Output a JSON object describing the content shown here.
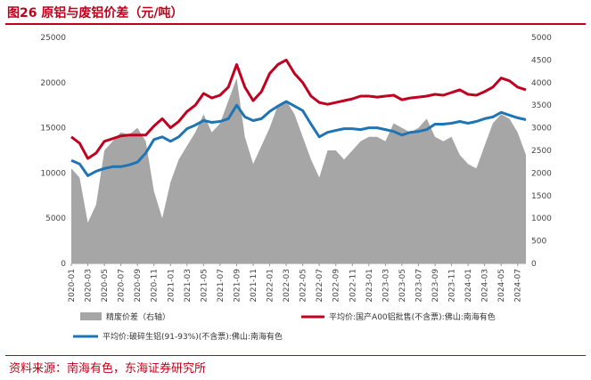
{
  "title": "图26  原铝与废铝价差（元/吨）",
  "source": "资料来源：南海有色，东海证券研究所",
  "chart_data": {
    "type": "line+area",
    "ylim_left": [
      0,
      25000
    ],
    "ylim_right": [
      0,
      5000
    ],
    "yticks_left": [
      "0",
      "5000",
      "10000",
      "15000",
      "20000",
      "25000"
    ],
    "yticks_right": [
      "0",
      "500",
      "1000",
      "1500",
      "2000",
      "2500",
      "3000",
      "3500",
      "4000",
      "4500",
      "5000"
    ],
    "xticks": [
      "2020-01",
      "2020-03",
      "2020-05",
      "2020-07",
      "2020-09",
      "2020-11",
      "2021-01",
      "2021-03",
      "2021-05",
      "2021-07",
      "2021-09",
      "2021-11",
      "2022-01",
      "2022-03",
      "2022-05",
      "2022-07",
      "2022-09",
      "2022-11",
      "2023-01",
      "2023-03",
      "2023-05",
      "2023-07",
      "2023-09",
      "2023-11",
      "2024-01",
      "2024-03",
      "2024-05",
      "2024-07"
    ],
    "months": [
      "2020-01",
      "2020-02",
      "2020-03",
      "2020-04",
      "2020-05",
      "2020-06",
      "2020-07",
      "2020-08",
      "2020-09",
      "2020-10",
      "2020-11",
      "2020-12",
      "2021-01",
      "2021-02",
      "2021-03",
      "2021-04",
      "2021-05",
      "2021-06",
      "2021-07",
      "2021-08",
      "2021-09",
      "2021-10",
      "2021-11",
      "2021-12",
      "2022-01",
      "2022-02",
      "2022-03",
      "2022-04",
      "2022-05",
      "2022-06",
      "2022-07",
      "2022-08",
      "2022-09",
      "2022-10",
      "2022-11",
      "2022-12",
      "2023-01",
      "2023-02",
      "2023-03",
      "2023-04",
      "2023-05",
      "2023-06",
      "2023-07",
      "2023-08",
      "2023-09",
      "2023-10",
      "2023-11",
      "2023-12",
      "2024-01",
      "2024-02",
      "2024-03",
      "2024-04",
      "2024-05",
      "2024-06",
      "2024-07",
      "2024-08"
    ],
    "series": [
      {
        "name": "精废价差（右轴）",
        "axis": "right",
        "style": "area",
        "color": "#a6a6a6",
        "values": [
          2100,
          1900,
          900,
          1300,
          2500,
          2700,
          2900,
          2850,
          3000,
          2700,
          1600,
          1000,
          1800,
          2300,
          2600,
          2900,
          3300,
          2900,
          3100,
          3600,
          4100,
          2800,
          2200,
          2600,
          3000,
          3500,
          3600,
          3300,
          2800,
          2300,
          1900,
          2500,
          2500,
          2300,
          2500,
          2700,
          2800,
          2800,
          2700,
          3100,
          3000,
          2900,
          3000,
          3200,
          2800,
          2700,
          2800,
          2400,
          2200,
          2100,
          2600,
          3100,
          3300,
          3200,
          2900,
          2400
        ]
      },
      {
        "name": "平均价:国产A00铝批售(不含票):佛山:南海有色",
        "axis": "left",
        "style": "line",
        "color": "#c00021",
        "values": [
          14000,
          13300,
          11600,
          12200,
          13500,
          13800,
          14100,
          14200,
          14200,
          14200,
          15200,
          16000,
          15000,
          15700,
          16800,
          17500,
          18800,
          18300,
          18600,
          19500,
          22000,
          19500,
          18000,
          19000,
          21000,
          22000,
          22500,
          21000,
          20000,
          18500,
          17800,
          17600,
          17800,
          18000,
          18200,
          18500,
          18500,
          18400,
          18500,
          18600,
          18100,
          18300,
          18400,
          18500,
          18700,
          18600,
          18900,
          19200,
          18700,
          18600,
          19000,
          19500,
          20500,
          20200,
          19500,
          19200
        ]
      },
      {
        "name": "平均价:破碎生铝(91-93%)(不含票):佛山:南海有色",
        "axis": "left",
        "style": "line",
        "color": "#1f74b4",
        "values": [
          11400,
          11000,
          9700,
          10200,
          10500,
          10700,
          10700,
          10900,
          11200,
          12200,
          13700,
          14000,
          13500,
          14000,
          14900,
          15300,
          15800,
          15600,
          15700,
          16000,
          17500,
          16200,
          15800,
          16000,
          16800,
          17400,
          17900,
          17400,
          16900,
          15400,
          14000,
          14500,
          14700,
          14900,
          14900,
          14800,
          15000,
          15000,
          14800,
          14600,
          14200,
          14500,
          14600,
          14800,
          15400,
          15400,
          15500,
          15700,
          15500,
          15700,
          16000,
          16200,
          16700,
          16400,
          16100,
          15900
        ]
      }
    ]
  }
}
